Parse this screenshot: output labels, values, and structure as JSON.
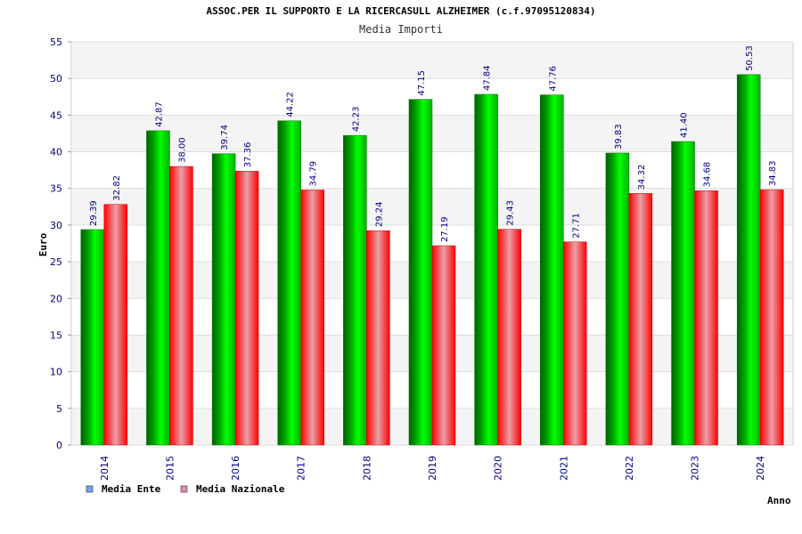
{
  "chart_data": {
    "type": "bar",
    "title": "ASSOC.PER IL SUPPORTO E LA RICERCASULL ALZHEIMER (c.f.97095120834)",
    "subtitle": "Media Importi",
    "xlabel": "Anno",
    "ylabel": "Euro",
    "ylim": [
      0,
      55
    ],
    "yticks": [
      "0",
      "5",
      "10",
      "15",
      "20",
      "25",
      "30",
      "35",
      "40",
      "45",
      "50",
      "55"
    ],
    "grid": true,
    "legend_position": "bottom-left",
    "categories": [
      "2014",
      "2015",
      "2016",
      "2017",
      "2018",
      "2019",
      "2020",
      "2021",
      "2022",
      "2023",
      "2024"
    ],
    "series": [
      {
        "name": "Media Ente",
        "values": [
          29.39,
          42.87,
          39.74,
          44.22,
          42.23,
          47.15,
          47.84,
          47.76,
          39.83,
          41.4,
          50.53
        ],
        "labels": [
          "29.39",
          "42.87",
          "39.74",
          "44.22",
          "42.23",
          "47.15",
          "47.84",
          "47.76",
          "39.83",
          "41.40",
          "50.53"
        ],
        "color": "#00c000",
        "legend_color": "#6aa6e8"
      },
      {
        "name": "Media Nazionale",
        "values": [
          32.82,
          38.0,
          37.36,
          34.79,
          29.24,
          27.19,
          29.43,
          27.71,
          34.32,
          34.68,
          34.83
        ],
        "labels": [
          "32.82",
          "38.00",
          "37.36",
          "34.79",
          "29.24",
          "27.19",
          "29.43",
          "27.71",
          "34.32",
          "34.68",
          "34.83"
        ],
        "color": "#ff0000",
        "legend_color": "#e08ab8"
      }
    ]
  }
}
